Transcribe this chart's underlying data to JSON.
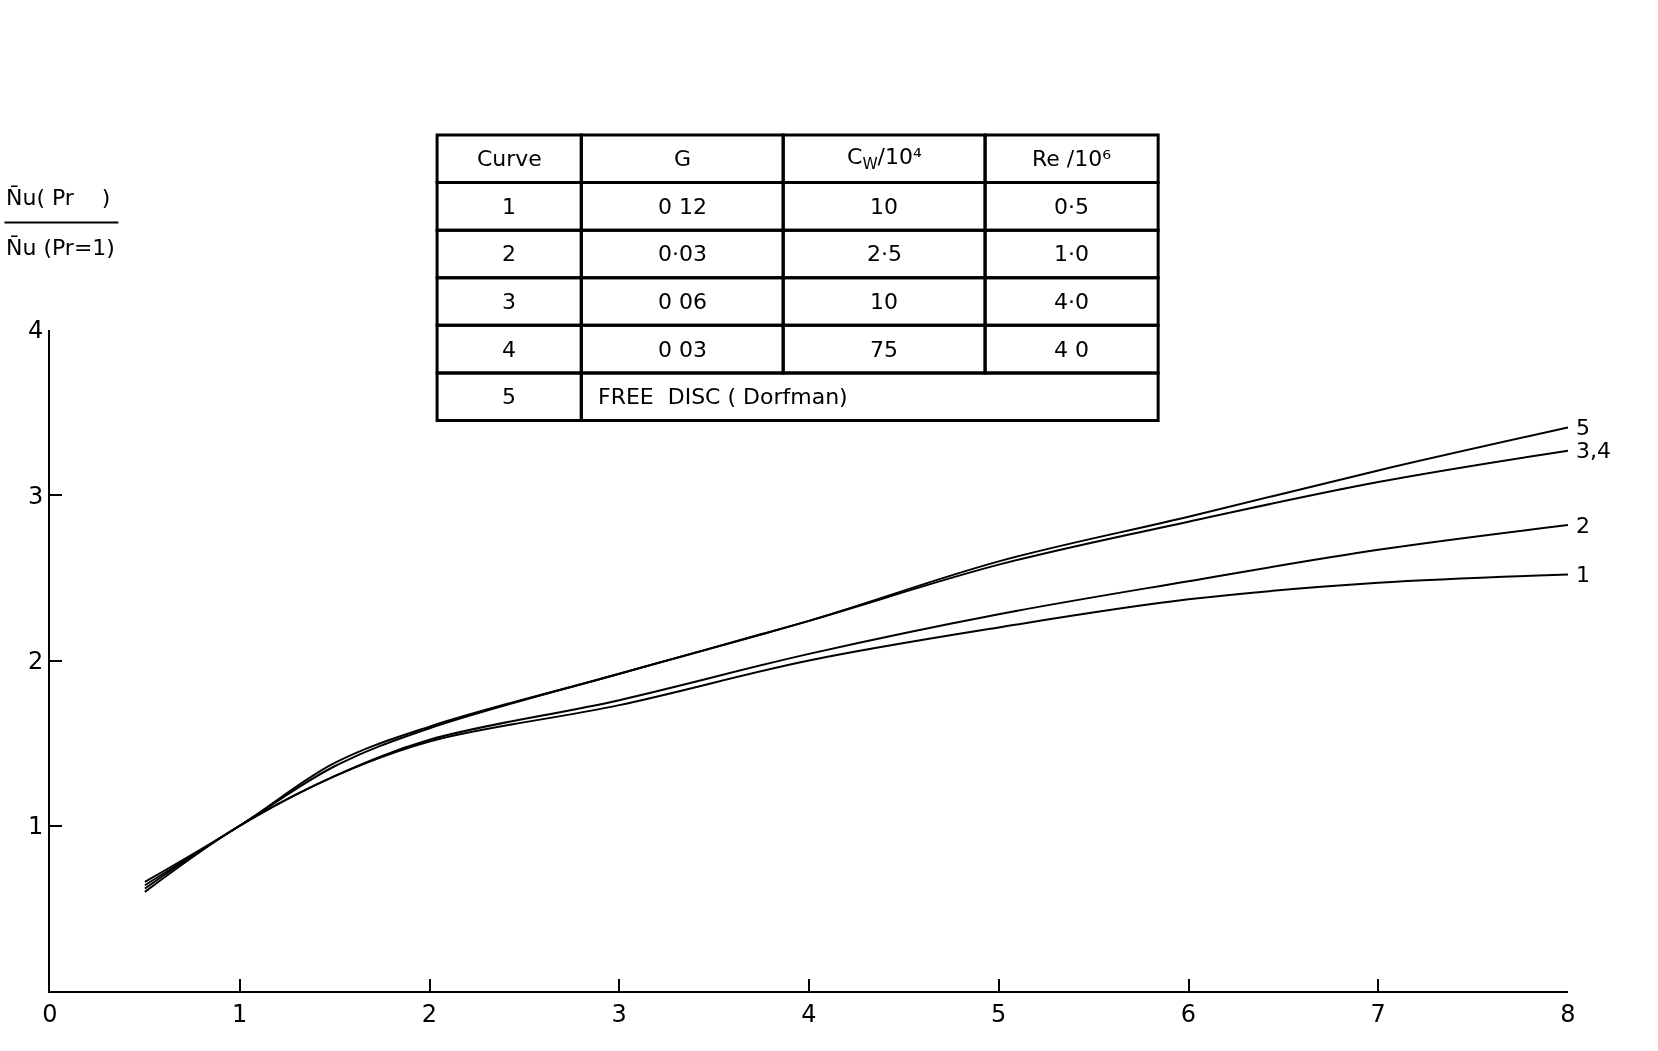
{
  "chart_data": {
    "type": "line",
    "ylabel": "N̄u( Pr    )\nN̄u (Pr=1)",
    "x": [
      0.5,
      1,
      1.5,
      2,
      3,
      4,
      5,
      6,
      7,
      8
    ],
    "series": [
      {
        "name": "1",
        "color": "#000000",
        "values": [
          0.62,
          1.0,
          1.3,
          1.51,
          1.73,
          2.0,
          2.2,
          2.37,
          2.47,
          2.52
        ]
      },
      {
        "name": "2",
        "color": "#000000",
        "values": [
          0.6,
          1.0,
          1.3,
          1.52,
          1.76,
          2.04,
          2.28,
          2.48,
          2.67,
          2.82
        ]
      },
      {
        "name": "3,4",
        "color": "#000000",
        "values": [
          0.64,
          1.0,
          1.36,
          1.59,
          1.92,
          2.24,
          2.58,
          2.84,
          3.08,
          3.27
        ]
      },
      {
        "name": "5",
        "color": "#000000",
        "values": [
          0.66,
          1.0,
          1.38,
          1.6,
          1.92,
          2.24,
          2.6,
          2.87,
          3.15,
          3.41
        ]
      }
    ],
    "xlim": [
      0,
      8
    ],
    "ylim": [
      0,
      4
    ],
    "xticks": [
      0,
      1,
      2,
      3,
      4,
      5,
      6,
      7,
      8
    ],
    "yticks": [
      1,
      2,
      3,
      4
    ],
    "legend": false,
    "marker": "none",
    "line_style": "solid",
    "annotations": [
      "Curve",
      "G",
      "C$_{W}$/10⁴",
      "Re /10⁶",
      "1",
      "0 12",
      "10",
      "0·5",
      "2",
      "0·03",
      "2·5",
      "1·0",
      "3",
      "0 06",
      "10",
      "4·0",
      "4",
      "0 03",
      "75",
      "4 0",
      "5",
      "FREE  DISC ( Dorfman)"
    ]
  }
}
